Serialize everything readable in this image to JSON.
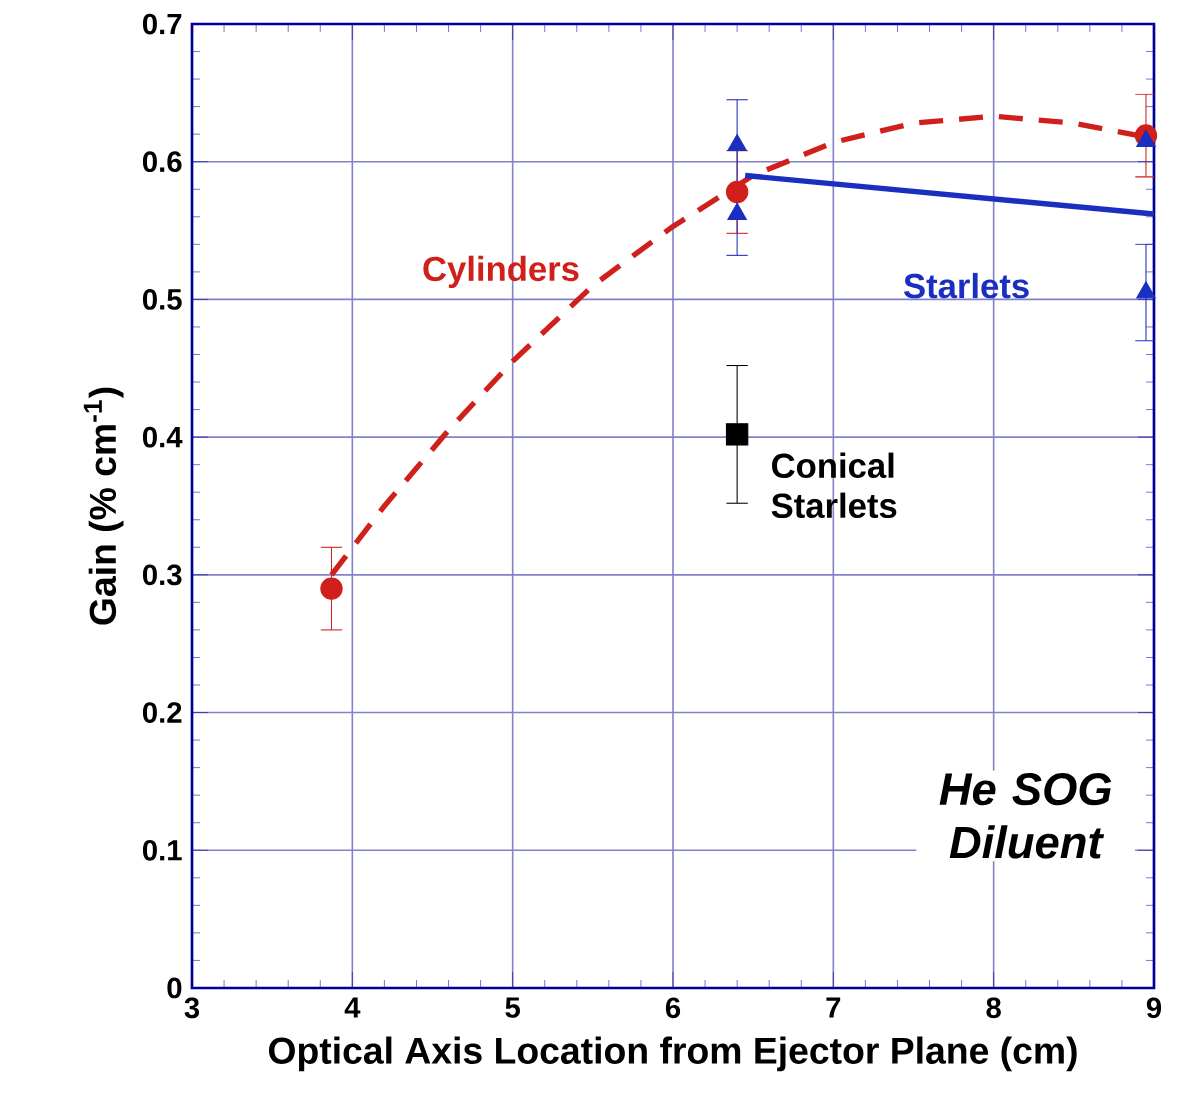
{
  "chart_data": {
    "type": "scatter",
    "xlabel": "Optical Axis Location from Ejector Plane (cm)",
    "ylabel": "Gain (% cm$^{-1}$)",
    "xlim": [
      3,
      9
    ],
    "xticks": [
      3,
      4,
      5,
      6,
      7,
      8,
      9
    ],
    "ylim": [
      0,
      0.7
    ],
    "yticks": [
      0,
      0.1,
      0.2,
      0.3,
      0.4,
      0.5,
      0.6,
      0.7
    ],
    "grid": true,
    "series": [
      {
        "type": "line",
        "line_style": "dashed",
        "marker": "none",
        "color": "#d0201c",
        "x": [
          3.87,
          4.2,
          4.6,
          5.0,
          5.5,
          6.0,
          6.5,
          7.0,
          7.5,
          8.0,
          8.5,
          8.95
        ],
        "values": [
          0.3,
          0.35,
          0.405,
          0.455,
          0.51,
          0.553,
          0.59,
          0.614,
          0.628,
          0.633,
          0.628,
          0.618
        ]
      },
      {
        "type": "line",
        "line_style": "solid",
        "marker": "none",
        "color": "#1a2fc0",
        "x": [
          6.45,
          9.0
        ],
        "values": [
          0.59,
          0.562
        ]
      },
      {
        "name": "Cylinders",
        "marker": "circle",
        "color": "#d0201c",
        "x": [
          3.87,
          6.4,
          8.95
        ],
        "values": [
          0.29,
          0.578,
          0.619
        ],
        "errors": [
          0.03,
          0.03,
          0.03
        ]
      },
      {
        "name": "Starlets",
        "marker": "triangle",
        "color": "#1a2fc0",
        "x": [
          6.4,
          6.4,
          8.95,
          8.95
        ],
        "values": [
          0.612,
          0.562,
          0.615,
          0.505
        ],
        "errors": [
          [
            0.532,
            0.645
          ],
          null,
          null,
          0.035
        ]
      },
      {
        "name": "Conical Starlets",
        "marker": "square",
        "color": "#000000",
        "x": [
          6.4
        ],
        "values": [
          0.402
        ],
        "errors": [
          0.05
        ]
      }
    ],
    "annotations": [
      "He SOG Diluent"
    ]
  }
}
